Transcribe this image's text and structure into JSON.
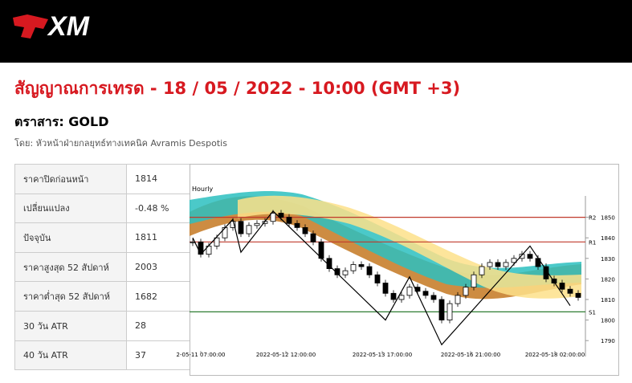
{
  "header": {
    "logo": "XM"
  },
  "title": "สัญญาณการเทรด - 18 / 05 / 2022 - 10:00 (GMT +3)",
  "instrument": "ตราสาร: GOLD",
  "author": "โดย: หัวหน้าฝ่ายกลยุทธ์ทางเทคนิค Avramis Despotis",
  "table": {
    "rows": [
      [
        "ราคาปิดก่อนหน้า",
        "1814"
      ],
      [
        "เปลี่ยนแปลง",
        "-0.48 %"
      ],
      [
        "ปัจจุบัน",
        "1811"
      ],
      [
        "ราคาสูงสุด 52 สัปดาห์",
        "2003"
      ],
      [
        "ราคาต่ำสุด 52 สัปดาห์",
        "1682"
      ],
      [
        "30 วัน ATR",
        "28"
      ],
      [
        "40 วัน ATR",
        "37"
      ]
    ]
  },
  "chart": {
    "type": "candlestick",
    "title": "Hourly",
    "x_labels": [
      "2-05-11 07:00:00",
      "2022-05-12 12:00:00",
      "2022-05-13 17:00:00",
      "2022-05-16 21:00:00",
      "2022-05-18 02:00:00"
    ],
    "ylim": [
      1785,
      1860
    ],
    "yticks": [
      1790,
      1800,
      1810,
      1820,
      1830,
      1840,
      1850
    ],
    "closes": [
      1838,
      1832,
      1836,
      1840,
      1845,
      1848,
      1842,
      1846,
      1847,
      1848,
      1852,
      1850,
      1847,
      1845,
      1842,
      1838,
      1830,
      1825,
      1822,
      1824,
      1827,
      1826,
      1822,
      1818,
      1813,
      1810,
      1812,
      1816,
      1814,
      1812,
      1810,
      1800,
      1808,
      1812,
      1816,
      1822,
      1826,
      1828,
      1826,
      1828,
      1830,
      1832,
      1830,
      1826,
      1820,
      1818,
      1815,
      1813,
      1811
    ],
    "zigzag": {
      "x": [
        0,
        1,
        5,
        6,
        10,
        24,
        27,
        31,
        42,
        47
      ],
      "values": [
        1840,
        1832,
        1849,
        1833,
        1853,
        1800,
        1821,
        1788,
        1836,
        1807
      ]
    },
    "levels": [
      {
        "label": "R2",
        "value": 1850,
        "color": "#c0392b"
      },
      {
        "label": "R1",
        "value": 1838,
        "color": "#c0392b"
      },
      {
        "label": "S1",
        "value": 1804,
        "color": "#2e7d32"
      }
    ]
  }
}
